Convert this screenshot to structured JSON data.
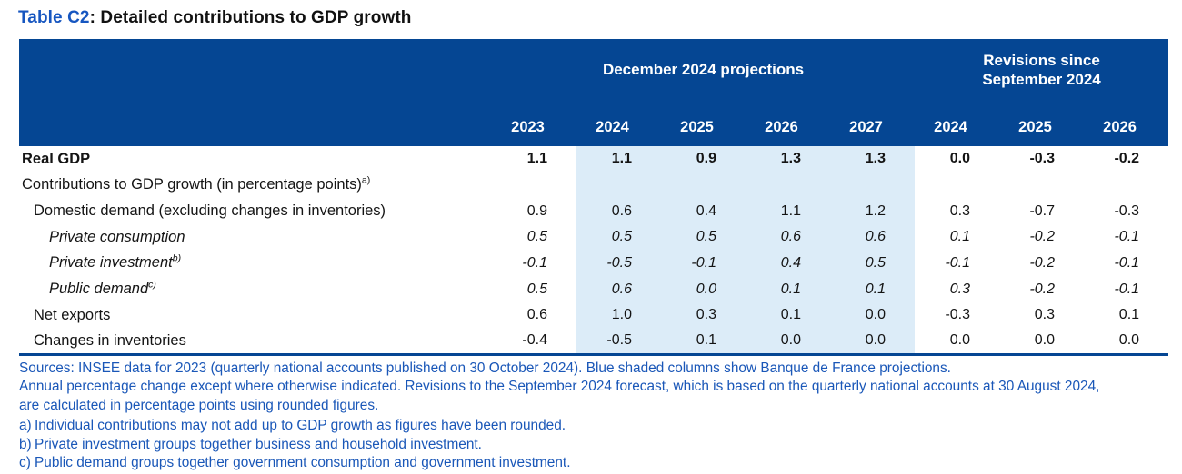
{
  "title": {
    "accent": "Table C2",
    "rest": ": Detailed contributions to GDP growth"
  },
  "colors": {
    "header_band": "#054693",
    "shaded_column": "#dcecf8",
    "footnote_text": "#1a57b8",
    "title_accent": "#1656c0",
    "bottom_rule": "#054693"
  },
  "table": {
    "group_headers": [
      {
        "label": "December 2024 projections",
        "span": 5,
        "wrap": false
      },
      {
        "label": "Revisions since September 2024",
        "span": 3,
        "wrap": true
      }
    ],
    "year_columns": [
      "2023",
      "2024",
      "2025",
      "2026",
      "2027",
      "2024",
      "2025",
      "2026"
    ],
    "shaded_value_columns": [
      1,
      2,
      3,
      4
    ],
    "rows": [
      {
        "label": "Real GDP",
        "sup": "",
        "indent": 0,
        "bold": true,
        "italic": false,
        "values": [
          "1.1",
          "1.1",
          "0.9",
          "1.3",
          "1.3",
          "0.0",
          "-0.3",
          "-0.2"
        ]
      },
      {
        "label": "Contributions to GDP growth (in percentage points)",
        "sup": "a)",
        "indent": 0,
        "bold": false,
        "italic": false,
        "values": [
          "",
          "",
          "",
          "",
          "",
          "",
          "",
          ""
        ]
      },
      {
        "label": "Domestic demand (excluding changes in inventories)",
        "sup": "",
        "indent": 1,
        "bold": false,
        "italic": false,
        "values": [
          "0.9",
          "0.6",
          "0.4",
          "1.1",
          "1.2",
          "0.3",
          "-0.7",
          "-0.3"
        ]
      },
      {
        "label": "Private consumption",
        "sup": "",
        "indent": 2,
        "bold": false,
        "italic": true,
        "values": [
          "0.5",
          "0.5",
          "0.5",
          "0.6",
          "0.6",
          "0.1",
          "-0.2",
          "-0.1"
        ]
      },
      {
        "label": "Private investment",
        "sup": "b)",
        "indent": 2,
        "bold": false,
        "italic": true,
        "values": [
          "-0.1",
          "-0.5",
          "-0.1",
          "0.4",
          "0.5",
          "-0.1",
          "-0.2",
          "-0.1"
        ]
      },
      {
        "label": "Public demand",
        "sup": "c)",
        "indent": 2,
        "bold": false,
        "italic": true,
        "values": [
          "0.5",
          "0.6",
          "0.0",
          "0.1",
          "0.1",
          "0.3",
          "-0.2",
          "-0.1"
        ]
      },
      {
        "label": "Net exports",
        "sup": "",
        "indent": 1,
        "bold": false,
        "italic": false,
        "values": [
          "0.6",
          "1.0",
          "0.3",
          "0.1",
          "0.0",
          "-0.3",
          "0.3",
          "0.1"
        ]
      },
      {
        "label": "Changes in inventories",
        "sup": "",
        "indent": 1,
        "bold": false,
        "italic": false,
        "values": [
          "-0.4",
          "-0.5",
          "0.1",
          "0.0",
          "0.0",
          "0.0",
          "0.0",
          "0.0"
        ]
      }
    ]
  },
  "footnotes": {
    "source_lines": [
      "Sources: INSEE data for 2023 (quarterly national accounts published on 30 October 2024). Blue shaded columns show Banque de France projections.",
      "Annual percentage change except where otherwise indicated. Revisions to the September 2024 forecast, which is based on the quarterly national accounts at 30 August 2024,",
      "are calculated in percentage points using rounded figures."
    ],
    "items": [
      {
        "marker": "a)",
        "text": "Individual contributions may not add up to GDP growth as figures have been rounded."
      },
      {
        "marker": "b)",
        "text": "Private investment groups together business and household investment."
      },
      {
        "marker": "c)",
        "text": "Public demand groups together government consumption and government investment."
      }
    ]
  }
}
